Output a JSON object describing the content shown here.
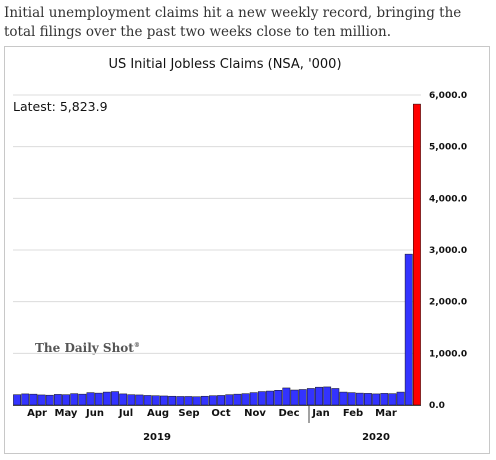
{
  "caption": "Initial unemployment claims hit a new weekly record, bringing the total filings over the past two weeks close to ten million.",
  "watermark": "The Daily Shot",
  "chart_data": {
    "type": "bar",
    "title": "US Initial Jobless Claims (NSA, '000)",
    "annotation": "Latest: 5,823.9",
    "ylim": [
      0,
      6000
    ],
    "yticks": [
      "0.0",
      "1,000.0",
      "2,000.0",
      "3,000.0",
      "4,000.0",
      "5,000.0",
      "6,000.0"
    ],
    "months": [
      "Apr",
      "May",
      "Jun",
      "Jul",
      "Aug",
      "Sep",
      "Oct",
      "Nov",
      "Dec",
      "Jan",
      "Feb",
      "Mar"
    ],
    "years": [
      "2019",
      "2020"
    ],
    "series_color": "#3333ff",
    "highlight_color": "#ff0000",
    "values": [
      200,
      215,
      210,
      195,
      190,
      205,
      200,
      220,
      210,
      240,
      230,
      250,
      260,
      215,
      200,
      195,
      185,
      180,
      175,
      170,
      165,
      165,
      160,
      170,
      180,
      185,
      200,
      210,
      220,
      240,
      260,
      270,
      285,
      330,
      290,
      300,
      320,
      345,
      350,
      320,
      250,
      240,
      230,
      225,
      215,
      225,
      220,
      250,
      2920,
      5823.9
    ]
  }
}
